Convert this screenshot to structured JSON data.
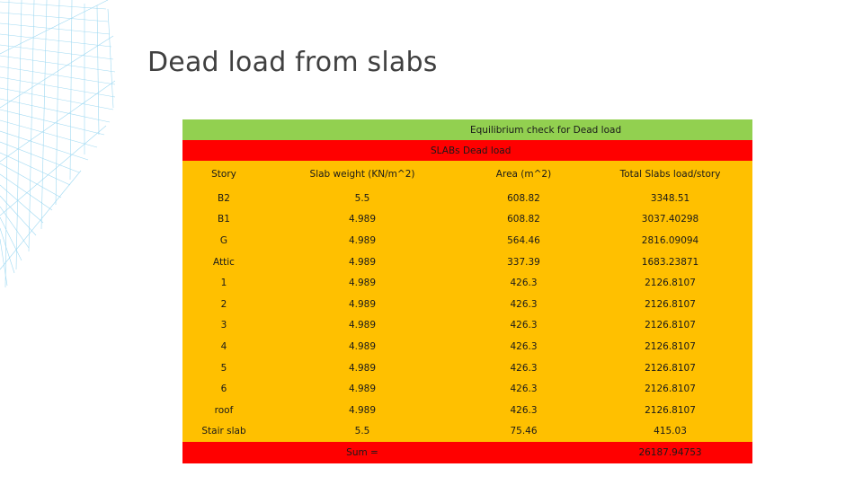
{
  "title": "Dead load from slabs",
  "table": {
    "caption1": "Equilibrium check for Dead load",
    "caption2": "SLABs Dead load",
    "headers": [
      "Story",
      "Slab weight (KN/m^2)",
      "Area (m^2)",
      "Total Slabs load/story"
    ],
    "rows": [
      [
        "B2",
        "5.5",
        "608.82",
        "3348.51"
      ],
      [
        "B1",
        "4.989",
        "608.82",
        "3037.40298"
      ],
      [
        "G",
        "4.989",
        "564.46",
        "2816.09094"
      ],
      [
        "Attic",
        "4.989",
        "337.39",
        "1683.23871"
      ],
      [
        "1",
        "4.989",
        "426.3",
        "2126.8107"
      ],
      [
        "2",
        "4.989",
        "426.3",
        "2126.8107"
      ],
      [
        "3",
        "4.989",
        "426.3",
        "2126.8107"
      ],
      [
        "4",
        "4.989",
        "426.3",
        "2126.8107"
      ],
      [
        "5",
        "4.989",
        "426.3",
        "2126.8107"
      ],
      [
        "6",
        "4.989",
        "426.3",
        "2126.8107"
      ],
      [
        "roof",
        "4.989",
        "426.3",
        "2126.8107"
      ],
      [
        "Stair slab",
        "5.5",
        "75.46",
        "415.03"
      ]
    ],
    "sum_label": "Sum =",
    "sum_value": "26187.94753"
  },
  "colors": {
    "header_green": "#92d050",
    "header_red": "#ff0000",
    "body_orange": "#ffc000",
    "wireframe": "#8fd3f0"
  }
}
